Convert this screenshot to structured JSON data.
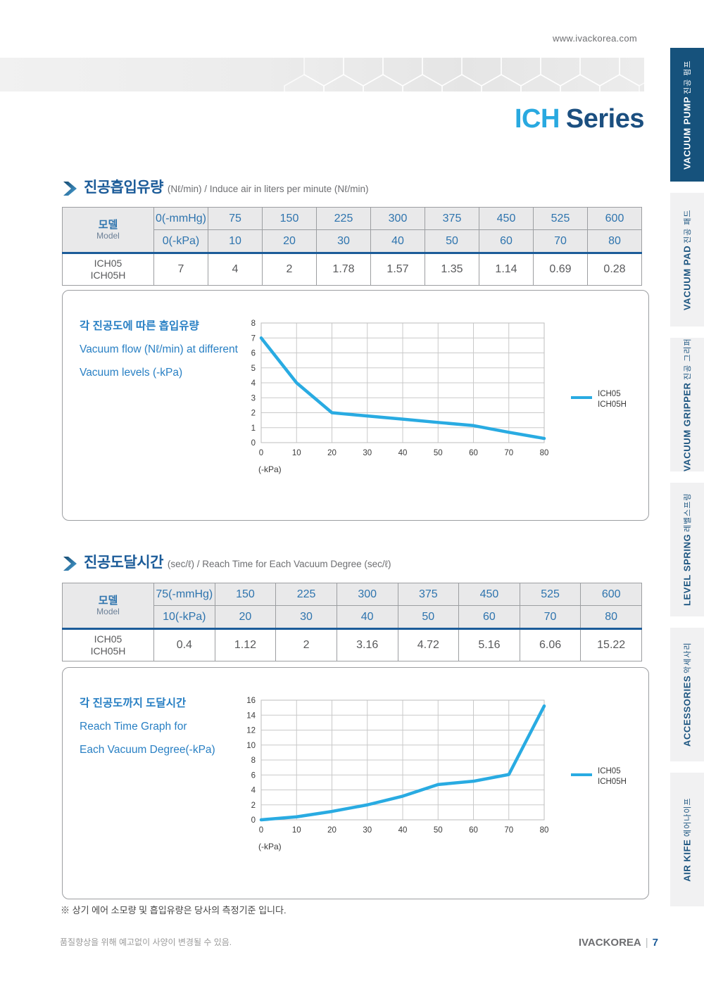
{
  "header": {
    "website": "www.ivackorea.com",
    "series_light": "ICH",
    "series_dark": "Series"
  },
  "sidebar": {
    "tabs": [
      {
        "en": "VACUUM PUMP",
        "ko": "진공 펌프",
        "active": true
      },
      {
        "en": "VACUUM PAD",
        "ko": "진공 패드",
        "active": false
      },
      {
        "en": "VACUUM GRIPPER",
        "ko": "진공 그리퍼",
        "active": false
      },
      {
        "en": "LEVEL SPRING",
        "ko": "레벨스프링",
        "active": false
      },
      {
        "en": "ACCESSORIES",
        "ko": "악세사리",
        "active": false
      },
      {
        "en": "AIR KIFE",
        "ko": "에어나이프",
        "active": false
      }
    ]
  },
  "section_flow": {
    "title": "진공흡입유량",
    "subtitle": "(Nℓ/min) / Induce air in liters per minute (Nℓ/min)",
    "table": {
      "model_ko": "모델",
      "model_en": "Model",
      "head_mmHg": [
        "0(-mmHg)",
        "75",
        "150",
        "225",
        "300",
        "375",
        "450",
        "525",
        "600"
      ],
      "head_kpa": [
        "0(-kPa)",
        "10",
        "20",
        "30",
        "40",
        "50",
        "60",
        "70",
        "80"
      ],
      "model_lines": [
        "ICH05",
        "ICH05H"
      ],
      "values": [
        "7",
        "4",
        "2",
        "1.78",
        "1.57",
        "1.35",
        "1.14",
        "0.69",
        "0.28"
      ]
    }
  },
  "section_time": {
    "title": "진공도달시간",
    "subtitle": "(sec/ℓ) / Reach Time for Each Vacuum Degree (sec/ℓ)",
    "table": {
      "model_ko": "모델",
      "model_en": "Model",
      "head_mmHg": [
        "75(-mmHg)",
        "150",
        "225",
        "300",
        "375",
        "450",
        "525",
        "600"
      ],
      "head_kpa": [
        "10(-kPa)",
        "20",
        "30",
        "40",
        "50",
        "60",
        "70",
        "80"
      ],
      "model_lines": [
        "ICH05",
        "ICH05H"
      ],
      "values": [
        "0.4",
        "1.12",
        "2",
        "3.16",
        "4.72",
        "5.16",
        "6.06",
        "15.22"
      ]
    }
  },
  "chart_data": [
    {
      "type": "line",
      "caption": [
        "각 진공도에 따른 흡입유량",
        "Vacuum flow (Nℓ/min) at different",
        "Vacuum levels (-kPa)"
      ],
      "x": [
        0,
        10,
        20,
        30,
        40,
        50,
        60,
        70,
        80
      ],
      "series": [
        {
          "name": "ICH05 ICH05H",
          "values": [
            7,
            4,
            2,
            1.78,
            1.57,
            1.35,
            1.14,
            0.69,
            0.28
          ]
        }
      ],
      "xlabel": "(-kPa)",
      "ylabel": "",
      "xlim": [
        0,
        80
      ],
      "xtick": 10,
      "ylim": [
        0,
        8
      ],
      "ytick": 1,
      "grid": true,
      "legend": [
        "ICH05",
        "ICH05H"
      ],
      "legend_position": "right",
      "line_color": "#29abe2"
    },
    {
      "type": "line",
      "caption": [
        "각 진공도까지 도달시간",
        "Reach Time Graph for",
        "Each Vacuum Degree(-kPa)"
      ],
      "x": [
        0,
        10,
        20,
        30,
        40,
        50,
        60,
        70,
        80
      ],
      "series": [
        {
          "name": "ICH05 ICH05H",
          "values": [
            0,
            0.4,
            1.12,
            2,
            3.16,
            4.72,
            5.16,
            6.06,
            15.22
          ]
        }
      ],
      "xlabel": "(-kPa)",
      "ylabel": "",
      "xlim": [
        0,
        80
      ],
      "xtick": 10,
      "ylim": [
        0,
        16
      ],
      "ytick": 2,
      "grid": true,
      "legend": [
        "ICH05",
        "ICH05H"
      ],
      "legend_position": "right",
      "line_color": "#29abe2"
    }
  ],
  "footnote": {
    "text": "※ 상기 에어 소모량 및 흡입유량은 당사의 측정기준 입니다."
  },
  "footer": {
    "note": "품질향상을 위해 예고없이 사양이 변경될 수 있음.",
    "brand": "IVACKOREA",
    "divider": "|",
    "page": "7"
  }
}
